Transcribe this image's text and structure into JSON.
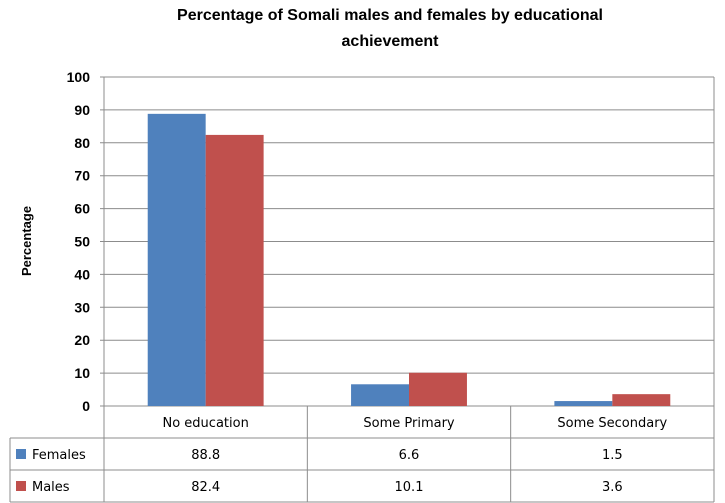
{
  "chart_data": {
    "type": "bar",
    "title": "Percentage of Somali males and females by educational",
    "title_line2": "achievement",
    "ylabel": "Percentage",
    "xlabel": "",
    "ylim": [
      0,
      100
    ],
    "yticks": [
      0,
      10,
      20,
      30,
      40,
      50,
      60,
      70,
      80,
      90,
      100
    ],
    "grid": true,
    "legend": "data-table",
    "categories": [
      "No education",
      "Some Primary",
      "Some Secondary"
    ],
    "series": [
      {
        "name": "Females",
        "color": "#4F81BD",
        "values": [
          88.8,
          6.6,
          1.5
        ],
        "labels": [
          "88.8",
          "6.6",
          "1.5"
        ]
      },
      {
        "name": "Males",
        "color": "#C0504D",
        "values": [
          82.4,
          10.1,
          3.6
        ],
        "labels": [
          "82.4",
          "10.1",
          "3.6"
        ]
      }
    ]
  }
}
